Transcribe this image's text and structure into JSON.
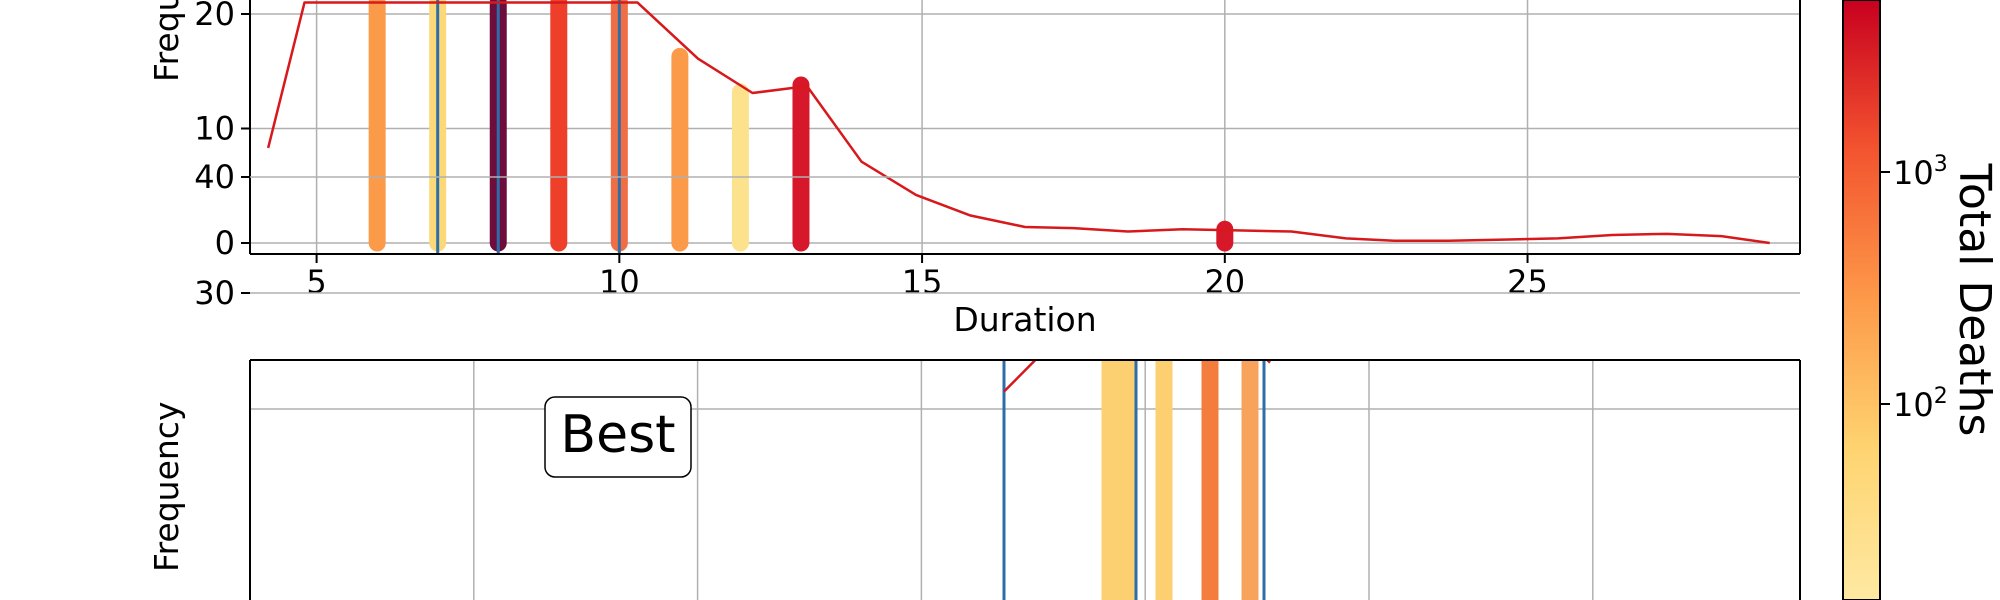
{
  "chart_data": [
    {
      "type": "bar",
      "panel": "top",
      "xlabel": "Duration",
      "ylabel": "Frequency",
      "xlim": [
        3.9,
        29.5
      ],
      "ylim": [
        -1,
        21
      ],
      "xticks": [
        5,
        10,
        15,
        20,
        25
      ],
      "yticks": [
        0,
        10,
        20
      ],
      "grid": true,
      "bars": [
        {
          "x": 6,
          "top": 21,
          "color": "#fb9a48"
        },
        {
          "x": 7,
          "top": 21,
          "color": "#fbd979"
        },
        {
          "x": 8,
          "top": 21,
          "color": "#6e0c3c"
        },
        {
          "x": 9,
          "top": 21,
          "color": "#ee3f2b"
        },
        {
          "x": 10,
          "top": 21,
          "color": "#f06e46"
        },
        {
          "x": 11,
          "top": 16.3,
          "color": "#fb9a48"
        },
        {
          "x": 12,
          "top": 13.2,
          "color": "#fde28e"
        },
        {
          "x": 13,
          "top": 13.8,
          "color": "#d7182a"
        },
        {
          "x": 20,
          "top": 1.2,
          "color": "#d7182a"
        }
      ],
      "vlines": [
        7,
        8,
        10
      ],
      "line": {
        "x": [
          4.2,
          4.8,
          10.3,
          11.3,
          12.2,
          13.1,
          14.0,
          14.9,
          15.8,
          16.7,
          17.5,
          18.4,
          19.3,
          20.2,
          21.1,
          22.0,
          22.8,
          23.7,
          24.6,
          25.5,
          26.4,
          27.3,
          28.2,
          29.0
        ],
        "y": [
          8.3,
          21,
          21,
          16.1,
          13.1,
          13.7,
          7.1,
          4.2,
          2.4,
          1.4,
          1.3,
          1.0,
          1.2,
          1.1,
          1.0,
          0.4,
          0.2,
          0.2,
          0.3,
          0.4,
          0.7,
          0.8,
          0.6,
          0.0
        ]
      }
    },
    {
      "type": "bar",
      "panel": "bottom",
      "label": "Best",
      "ylabel": "Frequency",
      "ylim": [
        0,
        45
      ],
      "yticks": [
        30,
        40
      ],
      "xlim": [
        0,
        7.5
      ],
      "grid": true,
      "bars": [
        {
          "x": 4.3,
          "top": 32.5,
          "color": "#fcd070"
        },
        {
          "x": 4.38,
          "top": 33.3,
          "color": "#fcd070"
        },
        {
          "x": 4.57,
          "top": 31.6,
          "color": "#fcd070"
        },
        {
          "x": 4.8,
          "top": 25.5,
          "color": "#f47c3c"
        },
        {
          "x": 5.0,
          "top": 25.5,
          "color": "#f8a35c"
        }
      ],
      "vlines": [
        3.77,
        4.43,
        5.07
      ],
      "line": {
        "x": [
          3.77,
          4.0,
          4.28,
          4.45,
          4.7,
          5.1
        ],
        "y": [
          21.5,
          25.5,
          31.4,
          33.0,
          31.0,
          24.0
        ]
      }
    }
  ],
  "colorbar": {
    "label": "Total Deaths",
    "tick_labels": [
      {
        "base": "10",
        "exp": "3"
      },
      {
        "base": "10",
        "exp": "2"
      }
    ]
  },
  "x_tick_labels": [
    "5",
    "10",
    "15",
    "20",
    "25"
  ],
  "top_y_tick_labels": [
    "20",
    "10",
    "0"
  ],
  "top_ylabel": "Frequency",
  "top_xlabel": "Duration",
  "bottom_y_tick_labels": [
    "40",
    "30"
  ],
  "bottom_ylabel": "Frequency",
  "bottom_box_label": "Best",
  "colors": {
    "line": "#d7191c",
    "vline": "#2c6ea8",
    "grid": "#b0b0b0"
  }
}
